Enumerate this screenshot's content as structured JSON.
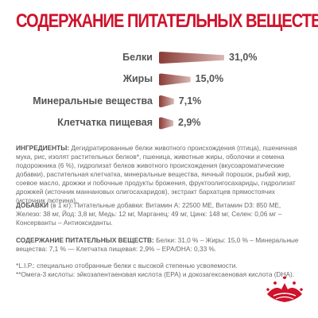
{
  "header": {
    "title": "СОДЕРЖАНИЕ ПИТАТЕЛЬНЫХ ВЕЩЕСТВ"
  },
  "colors": {
    "accent": "#d0122b",
    "bar_dark": "#8a3b35",
    "bar_light": "#d8b8b4"
  },
  "chart_data": {
    "type": "bar",
    "orientation": "horizontal",
    "categories": [
      "Белки",
      "Жиры",
      "Минеральные вещества",
      "Клетчатка пищевая"
    ],
    "values": [
      31.0,
      15.0,
      7.1,
      2.9
    ],
    "value_labels": [
      "31,0%",
      "15,0%",
      "7,1%",
      "2,9%"
    ],
    "xlim": [
      0,
      31.0
    ],
    "title": "СОДЕРЖАНИЕ ПИТАТЕЛЬНЫХ ВЕЩЕСТВ"
  },
  "ingredients": {
    "label": "ИНГРЕДИЕНТЫ:",
    "text": "Дегидратированные белки животного происхождения (птица), пшеничная мука, рис, изолят растительных белков*, пшеница, животные жиры, оболочки и семена подорожника (6 %), гидролизат белков животного происхождения (вкусоароматические добавки), растительная клетчатка, минеральные вещества, яичный порошок, рыбий жир, соевое масло, дрожжи и побочные продукты брожения, фруктоолигосахариды, гидролизат дрожжей (источник маннановых олигосахаридов), экстракт бархатцев прямостоячих (источник лютеина)."
  },
  "additives": {
    "label": "ДОБАВКИ",
    "text": "(в 1 кг): Питательные добавки: Витамин A: 22500 МЕ, Витамин D3: 850 МЕ, Железо: 38 мг, Йод: 3,8 мг, Медь: 12 мг, Марганец: 49 мг, Цинк: 148 мг, Селен: 0,06 мг – Консерванты – Антиоксиданты."
  },
  "nutrients": {
    "label": "СОДЕРЖАНИЕ ПИТАТЕЛЬНЫХ ВЕЩЕСТВ:",
    "text": "Белки: 31,0 % – Жиры: 15,0 % – Минеральные вещества: 7,1 % — Клетчатка пищевая: 2,9% – EPA/DHA: 0,33 %."
  },
  "footnotes": {
    "lip": "*L.I.P.: специально отобранные белки с высокой степенью усвояемости.",
    "omega": "**Омега-3 кислоты: эйкозапентаеновая кислота (EPA) и докозагексаеновая кислота (DHA)."
  },
  "logo": {
    "icon": "royal-canin-crown-logo"
  }
}
